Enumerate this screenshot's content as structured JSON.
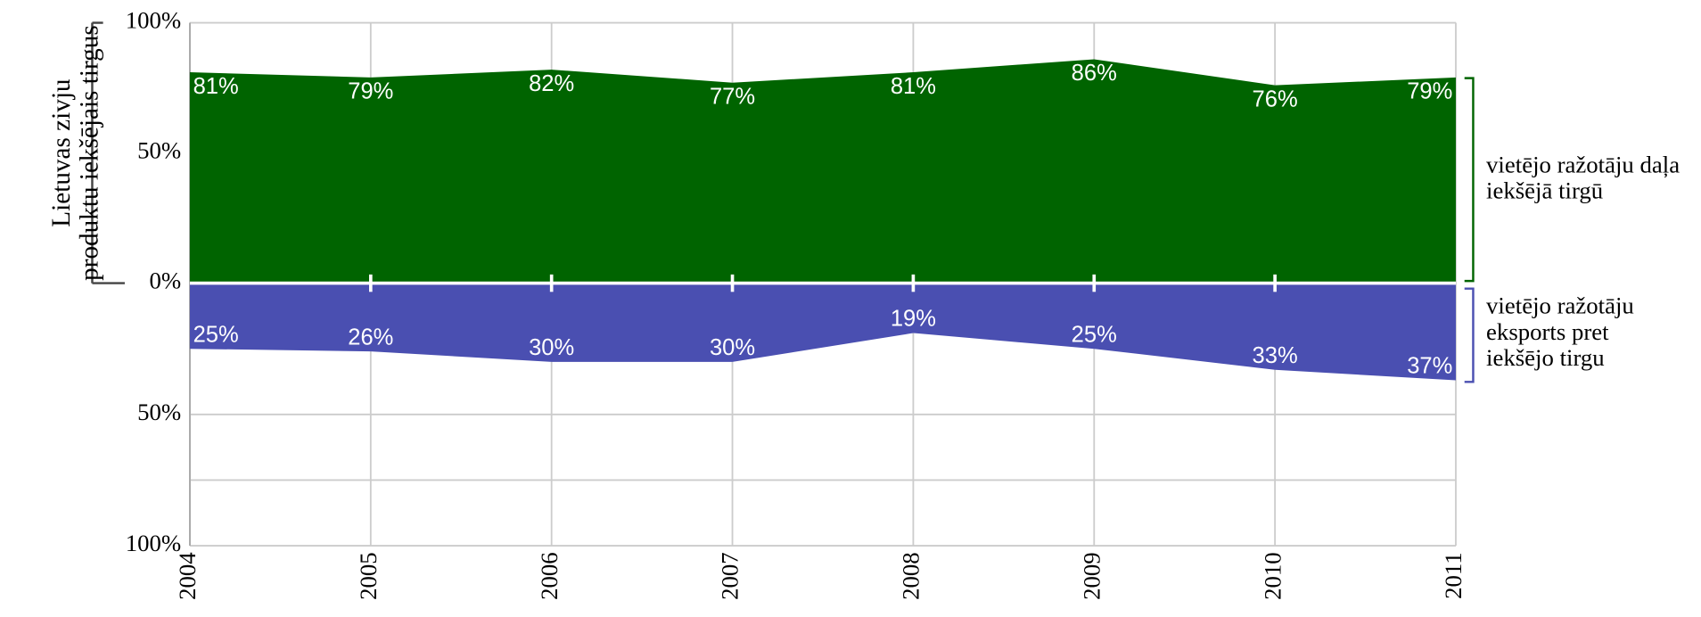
{
  "chart_data": [
    {
      "type": "area",
      "ylabel": "Lietuvas zivju\nproduktu iekšējais tirgus",
      "categories": [
        "2004",
        "2005",
        "2006",
        "2007",
        "2008",
        "2009",
        "2010",
        "2011"
      ],
      "series": [
        {
          "name": "vietējo ražotāju daļa iekšējā tirgū",
          "color": "#006400",
          "values": [
            81,
            79,
            82,
            77,
            81,
            86,
            76,
            79
          ],
          "value_labels": [
            "81%",
            "79%",
            "82%",
            "77%",
            "81%",
            "86%",
            "76%",
            "79%"
          ]
        }
      ],
      "ylim": [
        0,
        100
      ],
      "yticks": [
        {
          "value": 0,
          "label": "0%"
        },
        {
          "value": 50,
          "label": "50%"
        },
        {
          "value": 100,
          "label": "100%"
        }
      ],
      "grid": true
    },
    {
      "type": "area",
      "invert": true,
      "series": [
        {
          "name": "vietējo ražotāju eksports pret iekšējo tirgu",
          "color": "#4a4fb1",
          "values": [
            25,
            26,
            30,
            30,
            19,
            25,
            33,
            37
          ],
          "value_labels": [
            "25%",
            "26%",
            "30%",
            "30%",
            "19%",
            "25%",
            "33%",
            "37%"
          ]
        }
      ],
      "ylim": [
        0,
        100
      ],
      "yticks": [
        {
          "value": 50,
          "label": "50%"
        },
        {
          "value": 100,
          "label": "100%"
        }
      ],
      "minor_yticks": [
        75
      ],
      "grid": true
    }
  ]
}
